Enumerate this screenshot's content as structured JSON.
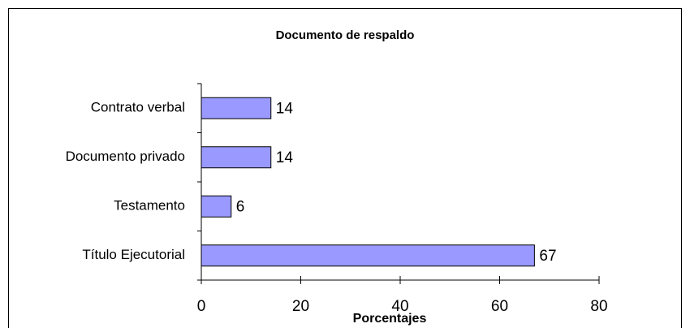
{
  "chart_data": {
    "type": "bar",
    "orientation": "horizontal",
    "title": "Documento de respaldo",
    "x_label": "Porcentajes",
    "categories": [
      "Contrato verbal",
      "Documento privado",
      "Testamento",
      "Título Ejecutorial"
    ],
    "values": [
      14,
      14,
      6,
      67
    ],
    "color": "#9999ff",
    "xlim": [
      0,
      80
    ],
    "xticks": [
      0,
      20,
      40,
      60,
      80
    ],
    "grid": false
  }
}
